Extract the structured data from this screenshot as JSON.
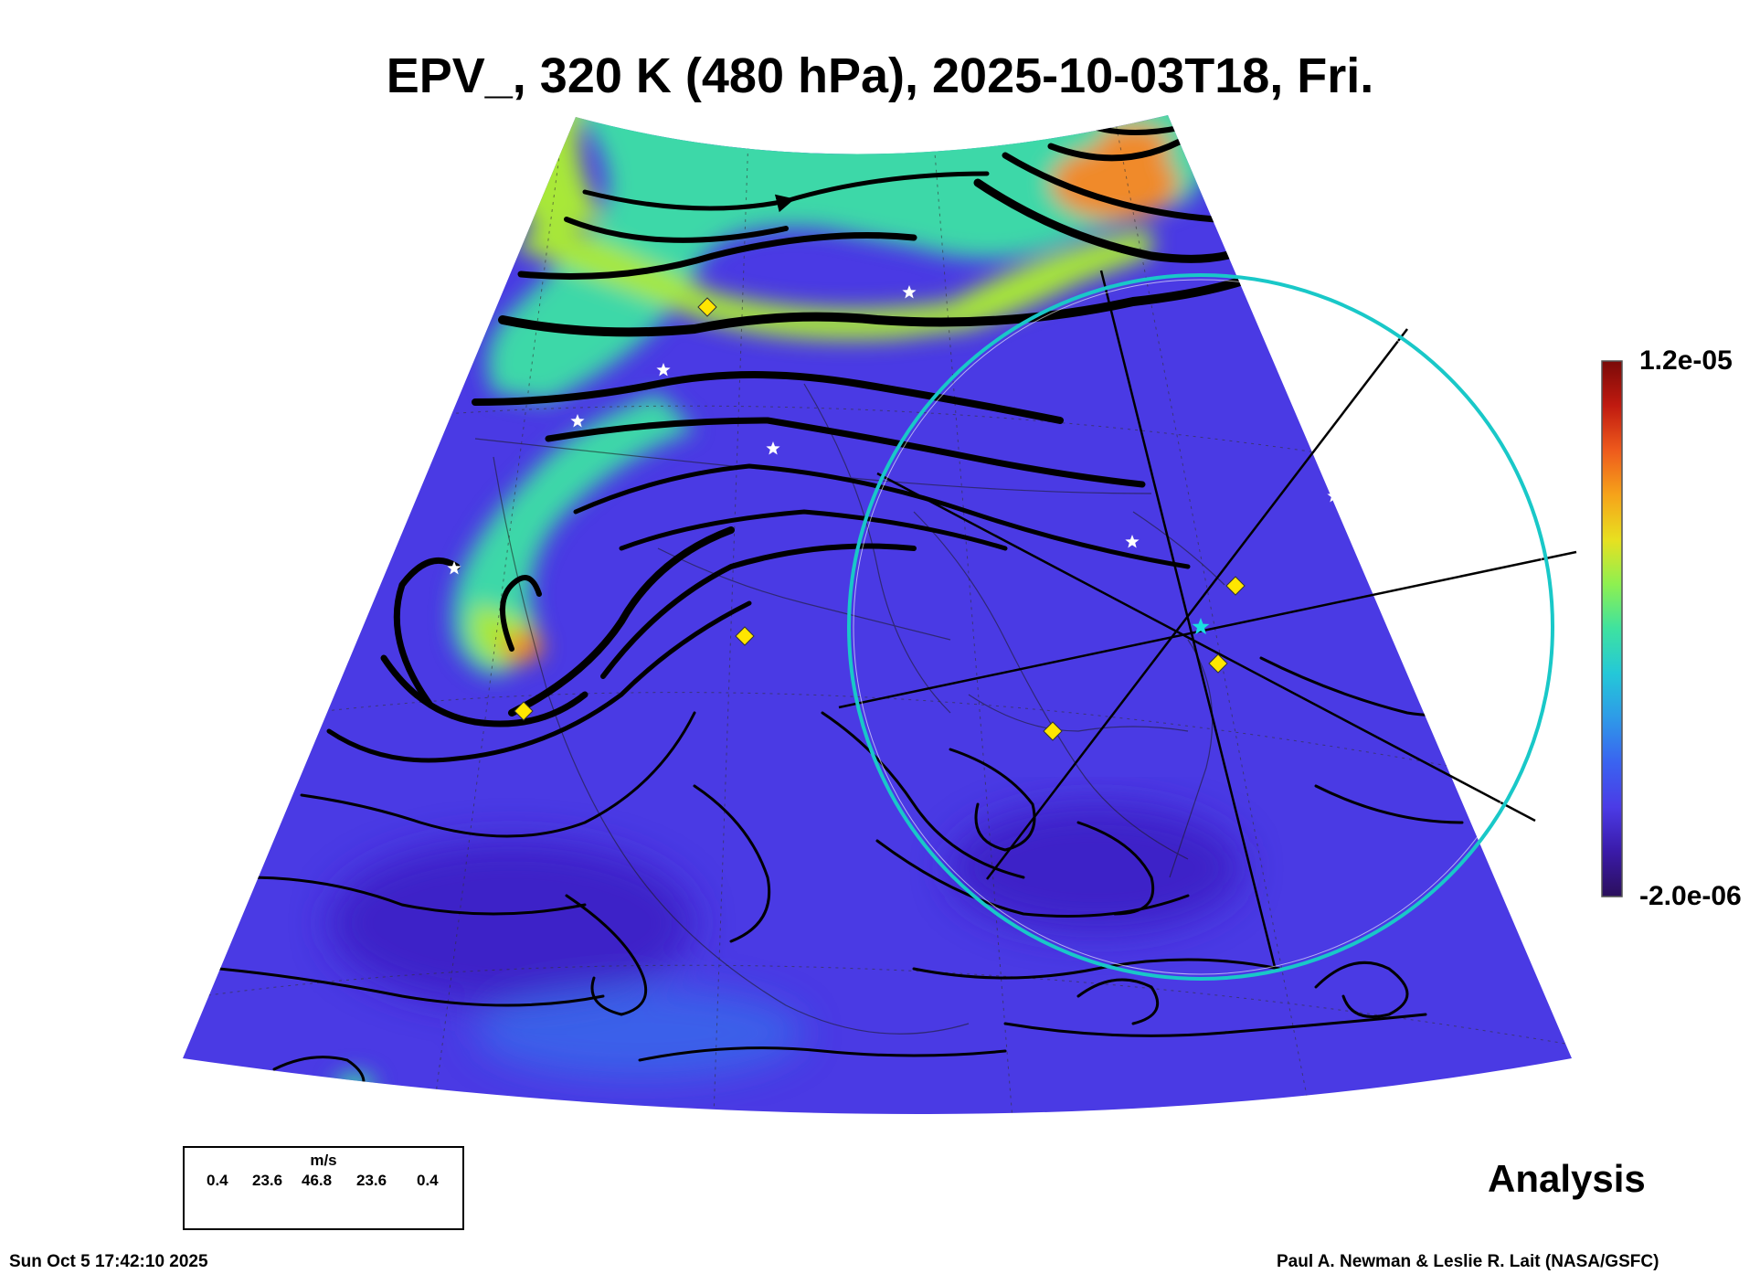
{
  "title": "EPV_, 320 K (480 hPa), 2025-10-03T18, Fri.",
  "colorbar": {
    "max_label": "1.2e-05",
    "min_label": "-2.0e-06",
    "colormap": [
      "#2b0f5c",
      "#3a1aa8",
      "#4b3be6",
      "#3a63f0",
      "#2e9ae8",
      "#24c8d8",
      "#3ee2a0",
      "#8ef050",
      "#e8e020",
      "#f6a31a",
      "#ee5a1c",
      "#c01a10",
      "#7a0a08"
    ]
  },
  "field_colors": {
    "background": "#4a3ae4",
    "background_dark": "#3d24c8",
    "moderate": "#2f7fee",
    "high": "#3ed8a8",
    "higher": "#a8e838",
    "peak": "#f08a2a"
  },
  "legend": {
    "unit": "m/s",
    "values": [
      "0.4",
      "23.6",
      "46.8",
      "23.6",
      "0.4"
    ]
  },
  "markers": {
    "diamond_color": "#ffe600",
    "star_color": "#ffffff",
    "center_star_color": "#19e0e0",
    "ring_color": "#19c8c8"
  },
  "analysis_label": "Analysis",
  "footer": {
    "timestamp": "Sun Oct  5 17:42:10 2025",
    "credit": "Paul A. Newman & Leslie R. Lait (NASA/GSFC)"
  }
}
